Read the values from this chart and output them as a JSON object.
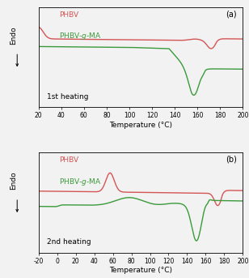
{
  "panel_a": {
    "title": "(a)",
    "xlabel": "Temperature (°C)",
    "xlim": [
      20,
      200
    ],
    "xticks": [
      20,
      40,
      60,
      80,
      100,
      120,
      140,
      160,
      180,
      200
    ],
    "label": "1st heating",
    "phbv_color": "#d45555",
    "phbvgma_color": "#3a9a3a"
  },
  "panel_b": {
    "title": "(b)",
    "xlabel": "Temperature (°C)",
    "xlim": [
      -20,
      200
    ],
    "xticks": [
      -20,
      0,
      20,
      40,
      60,
      80,
      100,
      120,
      140,
      160,
      180,
      200
    ],
    "label": "2nd heating",
    "phbv_color": "#d45555",
    "phbvgma_color": "#3a9a3a"
  },
  "endo_label": "Endo",
  "bg_color": "#f2f2f2",
  "linewidth": 1.0,
  "tick_fontsize": 5.5,
  "label_fontsize": 6.5,
  "axis_label_fontsize": 6.5
}
